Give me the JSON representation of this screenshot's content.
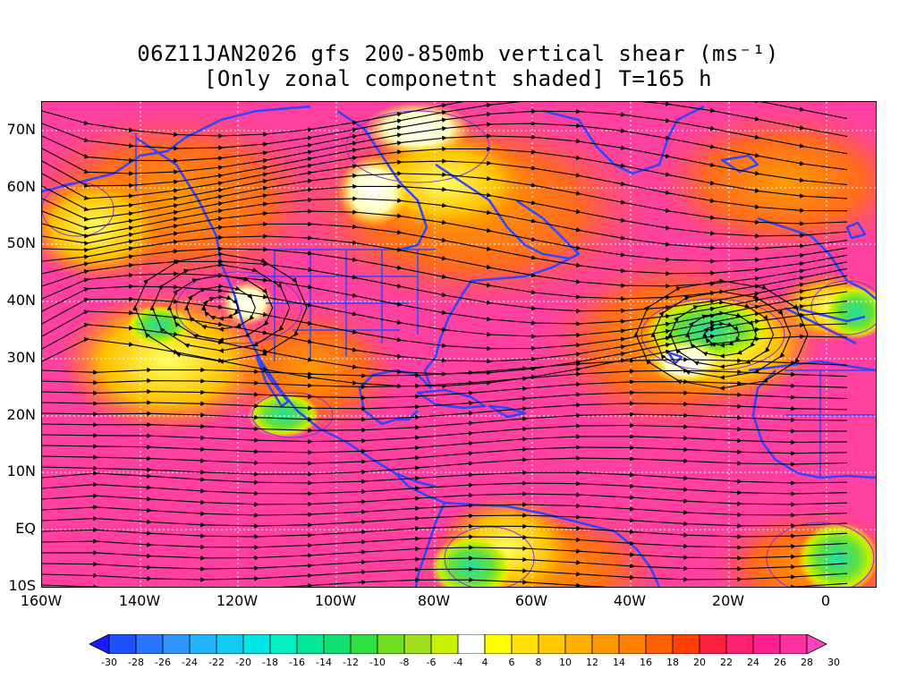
{
  "title": {
    "line1": "06Z11JAN2026 gfs 200-850mb vertical shear (ms⁻¹)",
    "line2": "[Only zonal componetnt shaded] T=165 h"
  },
  "map": {
    "projection": "latlon",
    "lon_range": [
      -160,
      10
    ],
    "lat_range": [
      -10,
      75
    ],
    "lat_labels": [
      "70N",
      "60N",
      "50N",
      "40N",
      "30N",
      "20N",
      "10N",
      "EQ",
      "10S"
    ],
    "lon_labels": [
      "160W",
      "140W",
      "120W",
      "100W",
      "80W",
      "60W",
      "40W",
      "20W",
      "0"
    ],
    "colors": {
      "coast": "#3344ff",
      "streamline": "#000000",
      "contour": "#8a2be2",
      "grid": "#ffffff"
    }
  },
  "colorbar": {
    "labels": [
      "-30",
      "-28",
      "-26",
      "-24",
      "-22",
      "-20",
      "-18",
      "-16",
      "-14",
      "-12",
      "-10",
      "-8",
      "-6",
      "-4",
      "4",
      "6",
      "8",
      "10",
      "12",
      "14",
      "16",
      "18",
      "20",
      "22",
      "24",
      "26",
      "28",
      "30"
    ],
    "colors": [
      "#1a1aff",
      "#2050ff",
      "#2a75ff",
      "#2f95ff",
      "#22b5ff",
      "#10ccf0",
      "#00e6e6",
      "#00f0c0",
      "#00e69a",
      "#10e070",
      "#30e040",
      "#70e020",
      "#a0e020",
      "#c8f000",
      "#ffffff",
      "#ffff00",
      "#ffe000",
      "#ffc800",
      "#ffb000",
      "#ff9800",
      "#ff8000",
      "#ff6000",
      "#ff4000",
      "#ff2040",
      "#ff2070",
      "#ff2090",
      "#ff30a0",
      "#ff40b8"
    ]
  }
}
